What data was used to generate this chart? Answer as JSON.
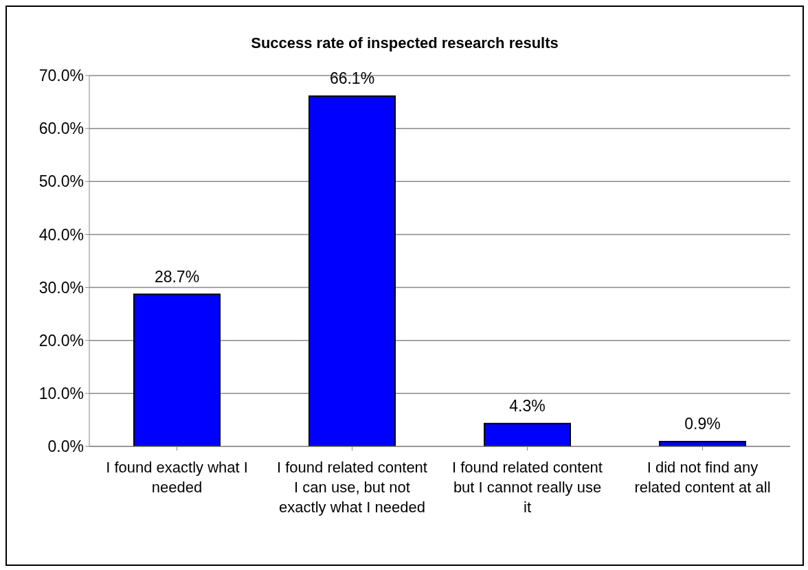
{
  "chart_data": {
    "type": "bar",
    "title": "Success rate of inspected research results",
    "categories": [
      "I found exactly what I needed",
      "I found related content I can use, but not exactly what I needed",
      "I found related content but I cannot really use it",
      "I did not find any related content at all"
    ],
    "values": [
      28.7,
      66.1,
      4.3,
      0.9
    ],
    "value_labels": [
      "28.7%",
      "66.1%",
      "4.3%",
      "0.9%"
    ],
    "color": "#0000ff",
    "ylim": [
      0,
      70
    ],
    "yticks": [
      {
        "value": 0,
        "label": "0.0%"
      },
      {
        "value": 10,
        "label": "10.0%"
      },
      {
        "value": 20,
        "label": "20.0%"
      },
      {
        "value": 30,
        "label": "30.0%"
      },
      {
        "value": 40,
        "label": "40.0%"
      },
      {
        "value": 50,
        "label": "50.0%"
      },
      {
        "value": 60,
        "label": "60.0%"
      },
      {
        "value": 70,
        "label": "70.0%"
      }
    ],
    "grid": "y",
    "legend": false
  }
}
